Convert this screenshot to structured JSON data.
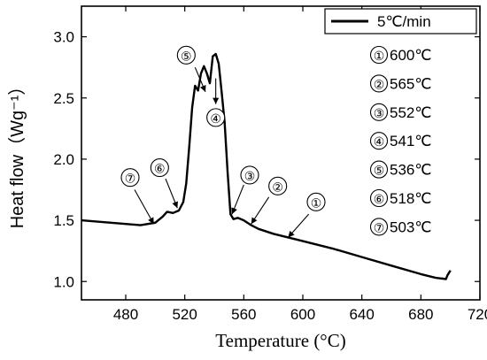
{
  "chart_data": {
    "type": "line",
    "xlabel": "Temperature (°C)",
    "ylabel": "Heat flow（Wg⁻¹）",
    "xlim": [
      450,
      720
    ],
    "ylim": [
      0.85,
      3.25
    ],
    "x_ticks": [
      480,
      520,
      560,
      600,
      640,
      680,
      720
    ],
    "y_ticks": [
      1.0,
      1.5,
      2.0,
      2.5,
      3.0
    ],
    "y_tick_labels": [
      "1.0",
      "1.5",
      "2.0",
      "2.5",
      "3.0"
    ],
    "legend_position": "top-right",
    "series": [
      {
        "name": "5℃/min",
        "color": "#000000",
        "x": [
          450,
          470,
          490,
          500,
          505,
          508,
          512,
          516,
          519,
          521,
          523,
          525,
          527,
          529,
          531,
          533,
          535,
          537,
          539,
          541,
          543,
          545,
          547,
          549,
          551,
          553,
          556,
          560,
          565,
          570,
          580,
          600,
          620,
          640,
          660,
          680,
          690,
          697,
          698,
          700
        ],
        "y": [
          1.5,
          1.48,
          1.46,
          1.48,
          1.53,
          1.57,
          1.56,
          1.58,
          1.65,
          1.8,
          2.1,
          2.42,
          2.6,
          2.56,
          2.7,
          2.76,
          2.7,
          2.62,
          2.84,
          2.86,
          2.78,
          2.55,
          2.3,
          1.9,
          1.55,
          1.51,
          1.52,
          1.5,
          1.46,
          1.43,
          1.39,
          1.33,
          1.27,
          1.2,
          1.13,
          1.06,
          1.03,
          1.02,
          1.05,
          1.09
        ]
      }
    ],
    "annotations": [
      {
        "num": "①",
        "label": "600℃"
      },
      {
        "num": "②",
        "label": "565℃"
      },
      {
        "num": "③",
        "label": "552℃"
      },
      {
        "num": "④",
        "label": "541℃"
      },
      {
        "num": "⑤",
        "label": "536℃"
      },
      {
        "num": "⑥",
        "label": "518℃"
      },
      {
        "num": "⑦",
        "label": "503℃"
      }
    ],
    "chart_markers": [
      {
        "num": "①",
        "label_x": 609,
        "label_y": 1.65,
        "arrow_from": [
          604,
          1.55
        ],
        "arrow_to": [
          590,
          1.36
        ]
      },
      {
        "num": "②",
        "label_x": 583,
        "label_y": 1.78,
        "arrow_from": [
          577,
          1.69
        ],
        "arrow_to": [
          565,
          1.47
        ]
      },
      {
        "num": "③",
        "label_x": 564,
        "label_y": 1.87,
        "arrow_from": [
          560,
          1.79
        ],
        "arrow_to": [
          552,
          1.55
        ]
      },
      {
        "num": "④",
        "label_x": 541,
        "label_y": 2.34,
        "arrow_from": [
          541,
          2.66
        ],
        "arrow_to": [
          541,
          2.45
        ]
      },
      {
        "num": "⑤",
        "label_x": 521,
        "label_y": 2.85,
        "arrow_from": [
          527,
          2.75
        ],
        "arrow_to": [
          534,
          2.55
        ]
      },
      {
        "num": "⑥",
        "label_x": 503,
        "label_y": 1.93,
        "arrow_from": [
          507,
          1.84
        ],
        "arrow_to": [
          515,
          1.6
        ]
      },
      {
        "num": "⑦",
        "label_x": 483,
        "label_y": 1.85,
        "arrow_from": [
          486,
          1.75
        ],
        "arrow_to": [
          499,
          1.47
        ]
      }
    ]
  }
}
